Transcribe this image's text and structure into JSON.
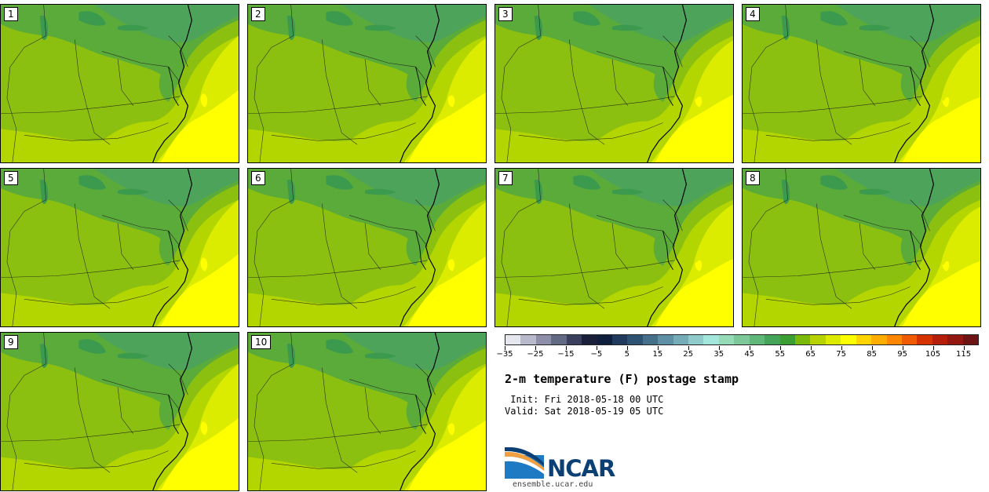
{
  "panels": [
    "1",
    "2",
    "3",
    "4",
    "5",
    "6",
    "7",
    "8",
    "9",
    "10"
  ],
  "colorbar": {
    "colors": [
      "#e6e6ee",
      "#b9b9cc",
      "#8e8ea8",
      "#626983",
      "#3a3f5e",
      "#1a1f3a",
      "#0f1e3c",
      "#1f3a5c",
      "#2e5272",
      "#46708a",
      "#5f8fa4",
      "#76acb8",
      "#8fcbcb",
      "#a2e6dc",
      "#96dbb8",
      "#7cc898",
      "#5fb87a",
      "#44a55a",
      "#3a9e32",
      "#7ab80a",
      "#b6d200",
      "#dcea00",
      "#ffff00",
      "#ffd400",
      "#ffae00",
      "#ff8600",
      "#f05a00",
      "#d63200",
      "#b41e0a",
      "#931812",
      "#6e1414"
    ],
    "tick_labels": [
      "−35",
      "−25",
      "−15",
      "−5",
      "5",
      "15",
      "25",
      "35",
      "45",
      "55",
      "65",
      "75",
      "85",
      "95",
      "105",
      "115"
    ]
  },
  "title": "2-m temperature (F) postage stamp",
  "init_line": " Init: Fri 2018-05-18 00 UTC",
  "valid_line": "Valid: Sat 2018-05-19 05 UTC",
  "logo": {
    "name": "NCAR",
    "url": "ensemble.ucar.edu"
  },
  "map_colors": {
    "lake": "#3c9a4e",
    "canada_land": "#4ea35a",
    "cool": "#5aab3a",
    "mid": "#8cc010",
    "warm": "#b4d600",
    "warmer": "#dcec00",
    "hot": "#ffff00"
  }
}
